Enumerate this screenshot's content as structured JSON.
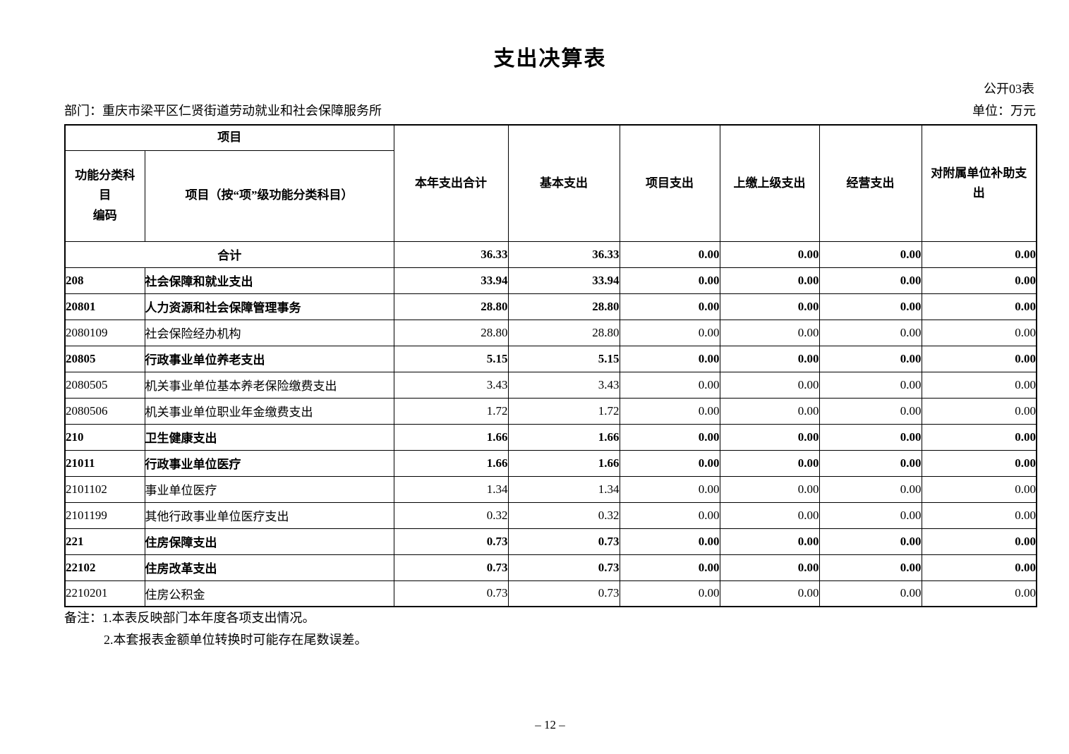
{
  "page": {
    "title": "支出决算表",
    "table_code": "公开03表",
    "department": "部门：重庆市梁平区仁贤街道劳动就业和社会保障服务所",
    "unit": "单位：万元",
    "page_number": "– 12 –"
  },
  "table": {
    "header": {
      "group_label": "项目",
      "code_label": "功能分类科目\n编码",
      "item_label": "项目（按“项”级功能分类科目）",
      "columns": [
        "本年支出合计",
        "基本支出",
        "项目支出",
        "上缴上级支出",
        "经营支出",
        "对附属单位补助支出"
      ]
    },
    "rows": [
      {
        "code": "",
        "name": "合计",
        "bold": true,
        "total": true,
        "values": [
          "36.33",
          "36.33",
          "0.00",
          "0.00",
          "0.00",
          "0.00"
        ]
      },
      {
        "code": "208",
        "name": "社会保障和就业支出",
        "bold": true,
        "total": false,
        "values": [
          "33.94",
          "33.94",
          "0.00",
          "0.00",
          "0.00",
          "0.00"
        ]
      },
      {
        "code": "20801",
        "name": "人力资源和社会保障管理事务",
        "bold": true,
        "total": false,
        "values": [
          "28.80",
          "28.80",
          "0.00",
          "0.00",
          "0.00",
          "0.00"
        ]
      },
      {
        "code": "2080109",
        "name": "社会保险经办机构",
        "bold": false,
        "total": false,
        "values": [
          "28.80",
          "28.80",
          "0.00",
          "0.00",
          "0.00",
          "0.00"
        ]
      },
      {
        "code": "20805",
        "name": "行政事业单位养老支出",
        "bold": true,
        "total": false,
        "values": [
          "5.15",
          "5.15",
          "0.00",
          "0.00",
          "0.00",
          "0.00"
        ]
      },
      {
        "code": "2080505",
        "name": "机关事业单位基本养老保险缴费支出",
        "bold": false,
        "total": false,
        "values": [
          "3.43",
          "3.43",
          "0.00",
          "0.00",
          "0.00",
          "0.00"
        ]
      },
      {
        "code": "2080506",
        "name": "机关事业单位职业年金缴费支出",
        "bold": false,
        "total": false,
        "values": [
          "1.72",
          "1.72",
          "0.00",
          "0.00",
          "0.00",
          "0.00"
        ]
      },
      {
        "code": "210",
        "name": "卫生健康支出",
        "bold": true,
        "total": false,
        "values": [
          "1.66",
          "1.66",
          "0.00",
          "0.00",
          "0.00",
          "0.00"
        ]
      },
      {
        "code": "21011",
        "name": "行政事业单位医疗",
        "bold": true,
        "total": false,
        "values": [
          "1.66",
          "1.66",
          "0.00",
          "0.00",
          "0.00",
          "0.00"
        ]
      },
      {
        "code": "2101102",
        "name": "事业单位医疗",
        "bold": false,
        "total": false,
        "values": [
          "1.34",
          "1.34",
          "0.00",
          "0.00",
          "0.00",
          "0.00"
        ]
      },
      {
        "code": "2101199",
        "name": "其他行政事业单位医疗支出",
        "bold": false,
        "total": false,
        "values": [
          "0.32",
          "0.32",
          "0.00",
          "0.00",
          "0.00",
          "0.00"
        ]
      },
      {
        "code": "221",
        "name": "住房保障支出",
        "bold": true,
        "total": false,
        "values": [
          "0.73",
          "0.73",
          "0.00",
          "0.00",
          "0.00",
          "0.00"
        ]
      },
      {
        "code": "22102",
        "name": "住房改革支出",
        "bold": true,
        "total": false,
        "values": [
          "0.73",
          "0.73",
          "0.00",
          "0.00",
          "0.00",
          "0.00"
        ]
      },
      {
        "code": "2210201",
        "name": "住房公积金",
        "bold": false,
        "total": false,
        "values": [
          "0.73",
          "0.73",
          "0.00",
          "0.00",
          "0.00",
          "0.00"
        ]
      }
    ],
    "notes": {
      "line1": "备注：1.本表反映部门本年度各项支出情况。",
      "line2": "2.本套报表金额单位转换时可能存在尾数误差。"
    }
  }
}
